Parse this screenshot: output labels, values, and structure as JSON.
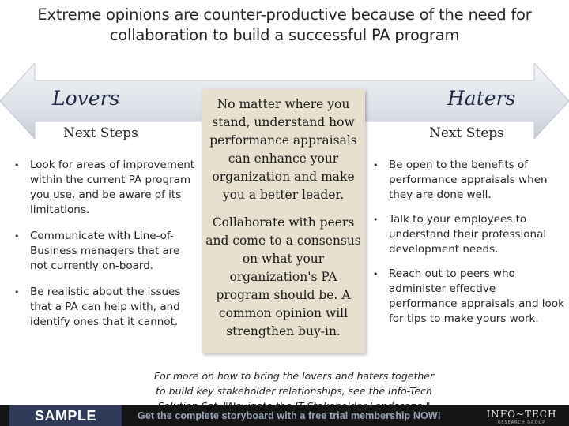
{
  "title": {
    "line1": "Extreme opinions are counter-productive because of the need for",
    "line2": "collaboration to build a successful PA program"
  },
  "left": {
    "label": "Lovers",
    "heading": "Next Steps",
    "bullets": [
      "Look for areas of improvement within the current PA program you use, and be aware of its limitations.",
      "Communicate with Line-of-Business managers that are not currently on-board.",
      "Be realistic about the issues that a PA can help with, and identify ones that it cannot."
    ]
  },
  "right": {
    "label": "Haters",
    "heading": "Next Steps",
    "bullets": [
      "Be open to the benefits of performance appraisals when they are done well.",
      "Talk to your employees to understand their professional development needs.",
      "Reach out to peers who administer effective performance appraisals and look for tips to make yours work."
    ]
  },
  "center": {
    "paragraph1": "No matter where you stand, understand how performance appraisals can enhance your organization and make you a better leader.",
    "paragraph2": "Collaborate with peers and come to a consensus on what your organization's PA program should be. A common opinion will strengthen buy-in."
  },
  "bullet_glyph": "•",
  "footer_note": {
    "line1": "For more on how to bring the lovers and haters together",
    "line2": "to build key stakeholder relationships, see the Info-Tech",
    "line3": "Solution Set, \"Navigate the IT Stakeholder Landscape.\""
  },
  "bottom_bar": {
    "sample_label": "SAMPLE",
    "promo_text": "Get the complete storyboard with a free trial membership NOW!",
    "logo_text": "INFO~TECH",
    "logo_subtext": "RESEARCH GROUP"
  },
  "colors": {
    "arrow_fill": "#dfe3ea",
    "center_box": "#e8e0cf",
    "sample_bg": "#2e3a58",
    "bar_bg": "#151515"
  },
  "icons": {
    "double_arrow": "double-headed-arrow-icon"
  }
}
